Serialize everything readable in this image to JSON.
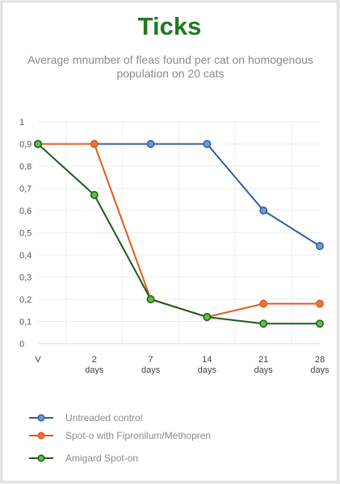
{
  "chart_data": {
    "type": "line",
    "title": "Ticks",
    "subtitle": "Average  mnumber of fleas found per cat on homogenous population on 20 cats",
    "categories": [
      "V",
      "2\ndays",
      "7\ndays",
      "14\ndays",
      "21\ndays",
      "28\ndays"
    ],
    "ylim": [
      0,
      1
    ],
    "yticks": [
      "0",
      "0,1",
      "0,2",
      "0,3",
      "0,4",
      "0,5",
      "0,6",
      "0,7",
      "0,8",
      "0,9",
      "1"
    ],
    "grid": true,
    "legend_position": "bottom-left",
    "series": [
      {
        "name": "Untreaded control",
        "color": "#2f5f9e",
        "fill": "#6e9ad0",
        "values": [
          0.9,
          0.9,
          0.9,
          0.9,
          0.6,
          0.44
        ]
      },
      {
        "name": "Spot-o with Fipronilum/Methopren",
        "color": "#e05a1c",
        "fill": "#e8743e",
        "values": [
          0.9,
          0.9,
          0.2,
          0.12,
          0.18,
          0.18
        ]
      },
      {
        "name": "Amigard Spot-on",
        "color": "#1e5a1e",
        "fill": "#5cc23c",
        "values": [
          0.9,
          0.67,
          0.2,
          0.12,
          0.09,
          0.09
        ]
      }
    ]
  }
}
